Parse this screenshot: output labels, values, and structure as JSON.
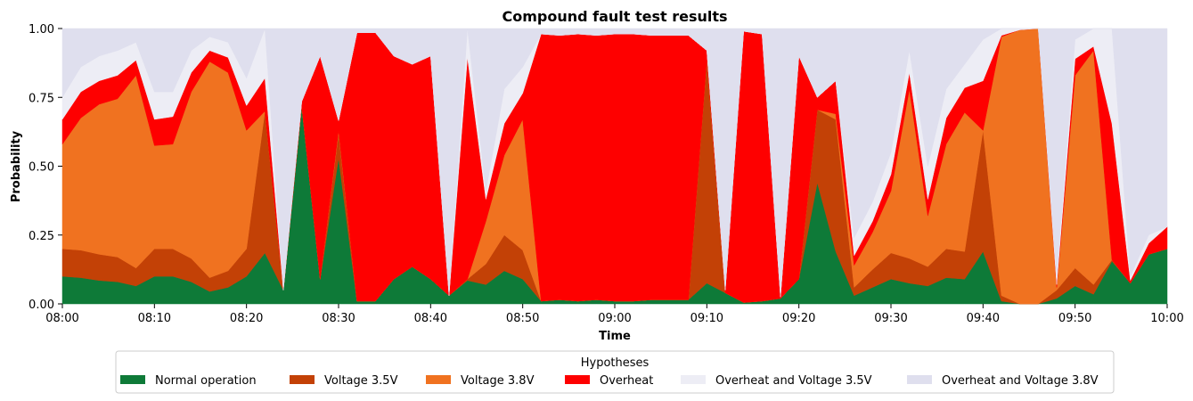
{
  "chart_data": {
    "type": "area",
    "stacked": true,
    "title": "Compound fault test results",
    "xlabel": "Time",
    "ylabel": "Probability",
    "ylim": [
      0,
      1
    ],
    "xlim_minutes": [
      0,
      120
    ],
    "x_ticks": [
      {
        "minute": 0,
        "label": "08:00"
      },
      {
        "minute": 10,
        "label": "08:10"
      },
      {
        "minute": 20,
        "label": "08:20"
      },
      {
        "minute": 30,
        "label": "08:30"
      },
      {
        "minute": 40,
        "label": "08:40"
      },
      {
        "minute": 50,
        "label": "08:50"
      },
      {
        "minute": 60,
        "label": "09:00"
      },
      {
        "minute": 70,
        "label": "09:10"
      },
      {
        "minute": 80,
        "label": "09:20"
      },
      {
        "minute": 90,
        "label": "09:30"
      },
      {
        "minute": 100,
        "label": "09:40"
      },
      {
        "minute": 110,
        "label": "09:50"
      },
      {
        "minute": 120,
        "label": "10:00"
      }
    ],
    "y_ticks": [
      {
        "value": 0,
        "label": "0.00"
      },
      {
        "value": 0.25,
        "label": "0.25"
      },
      {
        "value": 0.5,
        "label": "0.50"
      },
      {
        "value": 0.75,
        "label": "0.75"
      },
      {
        "value": 1,
        "label": "1.00"
      }
    ],
    "x_minutes": [
      0,
      2,
      4,
      6,
      8,
      10,
      12,
      14,
      16,
      18,
      20,
      22,
      24,
      26,
      28,
      30,
      32,
      34,
      36,
      38,
      40,
      42,
      44,
      46,
      48,
      50,
      52,
      54,
      56,
      58,
      60,
      62,
      64,
      66,
      68,
      70,
      72,
      74,
      76,
      78,
      80,
      82,
      84,
      86,
      88,
      90,
      92,
      94,
      96,
      98,
      100,
      102,
      104,
      106,
      108,
      110,
      112,
      114,
      116,
      118,
      120
    ],
    "cumulative": true,
    "series": [
      {
        "name": "Normal operation",
        "color": "#0e7a38",
        "values": [
          0.1,
          0.095,
          0.085,
          0.08,
          0.065,
          0.1,
          0.1,
          0.08,
          0.045,
          0.06,
          0.1,
          0.185,
          0.05,
          0.72,
          0.09,
          0.53,
          0.01,
          0.01,
          0.09,
          0.135,
          0.09,
          0.03,
          0.085,
          0.07,
          0.12,
          0.09,
          0.01,
          0.015,
          0.01,
          0.015,
          0.01,
          0.01,
          0.015,
          0.015,
          0.015,
          0.075,
          0.04,
          0.005,
          0.01,
          0.02,
          0.09,
          0.44,
          0.19,
          0.03,
          0.06,
          0.09,
          0.075,
          0.065,
          0.095,
          0.09,
          0.19,
          0.01,
          0.0,
          0.0,
          0.02,
          0.065,
          0.035,
          0.155,
          0.075,
          0.18,
          0.2
        ]
      },
      {
        "name": "Voltage 3.5V",
        "color": "#c34106",
        "values": [
          0.2,
          0.195,
          0.18,
          0.17,
          0.13,
          0.2,
          0.2,
          0.165,
          0.095,
          0.12,
          0.2,
          0.7,
          0.05,
          0.72,
          0.09,
          0.62,
          0.01,
          0.01,
          0.09,
          0.135,
          0.09,
          0.03,
          0.09,
          0.145,
          0.25,
          0.195,
          0.01,
          0.015,
          0.01,
          0.015,
          0.01,
          0.01,
          0.015,
          0.015,
          0.015,
          0.89,
          0.04,
          0.005,
          0.01,
          0.02,
          0.09,
          0.705,
          0.67,
          0.06,
          0.125,
          0.185,
          0.165,
          0.135,
          0.2,
          0.19,
          0.63,
          0.03,
          0.0,
          0.0,
          0.05,
          0.13,
          0.07,
          0.16,
          0.075,
          0.18,
          0.2
        ]
      },
      {
        "name": "Voltage 3.8V",
        "color": "#f07220",
        "values": [
          0.58,
          0.675,
          0.725,
          0.745,
          0.83,
          0.575,
          0.58,
          0.77,
          0.88,
          0.84,
          0.63,
          0.7,
          0.05,
          0.72,
          0.09,
          0.63,
          0.01,
          0.01,
          0.09,
          0.135,
          0.09,
          0.03,
          0.09,
          0.3,
          0.54,
          0.67,
          0.01,
          0.015,
          0.01,
          0.015,
          0.01,
          0.01,
          0.015,
          0.015,
          0.015,
          0.89,
          0.04,
          0.005,
          0.01,
          0.02,
          0.09,
          0.705,
          0.69,
          0.14,
          0.26,
          0.41,
          0.78,
          0.32,
          0.58,
          0.695,
          0.63,
          0.97,
          0.995,
          1.0,
          0.06,
          0.83,
          0.92,
          0.16,
          0.075,
          0.18,
          0.2
        ]
      },
      {
        "name": "Overheat",
        "color": "#fe0000",
        "values": [
          0.67,
          0.77,
          0.81,
          0.83,
          0.885,
          0.67,
          0.68,
          0.84,
          0.92,
          0.895,
          0.72,
          0.82,
          0.05,
          0.735,
          0.9,
          0.665,
          0.985,
          0.985,
          0.9,
          0.87,
          0.9,
          0.03,
          0.895,
          0.38,
          0.655,
          0.765,
          0.98,
          0.975,
          0.98,
          0.975,
          0.98,
          0.98,
          0.975,
          0.975,
          0.975,
          0.92,
          0.05,
          0.99,
          0.98,
          0.025,
          0.9,
          0.75,
          0.81,
          0.175,
          0.3,
          0.47,
          0.84,
          0.38,
          0.675,
          0.785,
          0.81,
          0.975,
          0.995,
          1.0,
          0.07,
          0.89,
          0.935,
          0.655,
          0.085,
          0.22,
          0.28
        ]
      },
      {
        "name": "Overheat and Voltage 3.5V",
        "color": "#ededf5",
        "values": [
          0.75,
          0.86,
          0.9,
          0.92,
          0.95,
          0.77,
          0.77,
          0.92,
          0.97,
          0.95,
          0.82,
          1.0,
          0.05,
          0.735,
          0.9,
          0.665,
          0.985,
          0.985,
          0.9,
          0.87,
          0.9,
          0.03,
          1.0,
          0.41,
          0.78,
          0.86,
          0.98,
          0.975,
          0.98,
          0.975,
          0.98,
          0.98,
          0.975,
          0.975,
          0.975,
          0.92,
          0.05,
          0.99,
          0.98,
          0.025,
          0.9,
          0.75,
          0.81,
          0.24,
          0.37,
          0.55,
          0.92,
          0.5,
          0.78,
          0.87,
          0.96,
          1.0,
          1.0,
          1.0,
          0.1,
          0.96,
          1.0,
          1.0,
          0.1,
          0.25,
          0.28
        ]
      },
      {
        "name": "Overheat and Voltage 3.8V",
        "color": "#dfdfee",
        "values": [
          1.0,
          1.0,
          1.0,
          1.0,
          1.0,
          1.0,
          1.0,
          1.0,
          1.0,
          1.0,
          1.0,
          1.0,
          1.0,
          1.0,
          1.0,
          1.0,
          1.0,
          1.0,
          1.0,
          1.0,
          1.0,
          1.0,
          1.0,
          1.0,
          1.0,
          1.0,
          1.0,
          1.0,
          1.0,
          1.0,
          1.0,
          1.0,
          1.0,
          1.0,
          1.0,
          1.0,
          1.0,
          1.0,
          1.0,
          1.0,
          1.0,
          1.0,
          1.0,
          1.0,
          1.0,
          1.0,
          1.0,
          1.0,
          1.0,
          1.0,
          1.0,
          1.0,
          1.0,
          1.0,
          1.0,
          1.0,
          1.0,
          1.0,
          1.0,
          1.0,
          1.0
        ]
      }
    ],
    "legend": {
      "title": "Hypotheses",
      "placement": "bottom-center",
      "entries": [
        "Normal operation",
        "Voltage 3.5V",
        "Voltage 3.8V",
        "Overheat",
        "Overheat and Voltage 3.5V",
        "Overheat and Voltage 3.8V"
      ]
    }
  }
}
